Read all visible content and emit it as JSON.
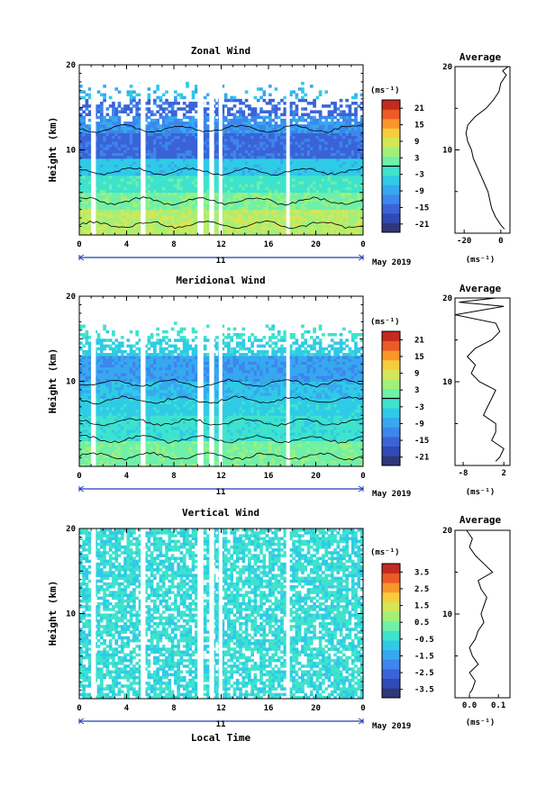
{
  "chart_data": [
    {
      "type": "heatmap",
      "title": "Zonal Wind",
      "ylabel": "Height (km)",
      "y_ticks": [
        "10",
        "20"
      ],
      "ylim": [
        0,
        20
      ],
      "x_ticks": [
        "0",
        "4",
        "8",
        "12",
        "16",
        "20",
        "0"
      ],
      "xlim": [
        0,
        24
      ],
      "day_label": "11",
      "date_label": "May 2019",
      "colorbar": {
        "unit": "(ms⁻¹)",
        "ticks": [
          "21",
          "15",
          "9",
          "3",
          "-3",
          "-9",
          "-15",
          "-21"
        ],
        "range": [
          -24,
          24
        ]
      },
      "profile": {
        "title": "Average",
        "xlabel": "(ms⁻¹)",
        "x_ticks": [
          "-20",
          "0"
        ],
        "xlim": [
          -25,
          5
        ],
        "y_ticks": [
          "10",
          "20"
        ],
        "height_km": [
          0.5,
          1,
          2,
          3,
          4,
          5,
          6,
          7,
          8,
          9,
          10,
          11,
          12,
          13,
          14,
          15,
          16,
          17,
          18,
          19,
          19.5,
          20
        ],
        "values": [
          2,
          0,
          -3,
          -5,
          -6,
          -7,
          -9,
          -11,
          -13,
          -15,
          -16,
          -18,
          -19,
          -18,
          -14,
          -8,
          -4,
          -1,
          0,
          3,
          1,
          4
        ]
      },
      "data_gaps_hours": [
        [
          1.0,
          1.4
        ],
        [
          5.2,
          5.6
        ],
        [
          10.0,
          10.5
        ],
        [
          11.0,
          11.4
        ],
        [
          11.8,
          12.1
        ],
        [
          17.5,
          17.8
        ]
      ],
      "coverage_top_km": 18
    },
    {
      "type": "heatmap",
      "title": "Meridional Wind",
      "ylabel": "Height (km)",
      "y_ticks": [
        "10",
        "20"
      ],
      "ylim": [
        0,
        20
      ],
      "x_ticks": [
        "0",
        "4",
        "8",
        "12",
        "16",
        "20",
        "0"
      ],
      "xlim": [
        0,
        24
      ],
      "day_label": "11",
      "date_label": "May 2019",
      "colorbar": {
        "unit": "(ms⁻¹)",
        "ticks": [
          "21",
          "15",
          "9",
          "3",
          "-3",
          "-9",
          "-15",
          "-21"
        ],
        "range": [
          -24,
          24
        ]
      },
      "profile": {
        "title": "Average",
        "xlabel": "(ms⁻¹)",
        "x_ticks": [
          "-8",
          "2"
        ],
        "xlim": [
          -10,
          3.5
        ],
        "y_ticks": [
          "10",
          "20"
        ],
        "height_km": [
          0.5,
          1,
          2,
          3,
          4,
          5,
          6,
          7,
          8,
          9,
          10,
          11,
          12,
          13,
          14,
          15,
          16,
          17,
          18,
          19,
          19.5,
          20
        ],
        "values": [
          0,
          1,
          2,
          -1,
          0,
          0,
          -3,
          -2,
          -1,
          0,
          -4,
          -6,
          -5,
          -7,
          -5,
          -1,
          1,
          0,
          -10,
          2,
          -9,
          0
        ]
      },
      "data_gaps_hours": [
        [
          1.0,
          1.4
        ],
        [
          5.2,
          5.6
        ],
        [
          10.0,
          10.5
        ],
        [
          11.0,
          11.4
        ],
        [
          11.8,
          12.1
        ],
        [
          17.5,
          17.8
        ]
      ],
      "coverage_top_km": 17
    },
    {
      "type": "heatmap",
      "title": "Vertical Wind",
      "ylabel": "Height (km)",
      "xlabel": "Local Time",
      "y_ticks": [
        "10",
        "20"
      ],
      "ylim": [
        0,
        20
      ],
      "x_ticks": [
        "0",
        "4",
        "8",
        "12",
        "16",
        "20",
        "0"
      ],
      "xlim": [
        0,
        24
      ],
      "day_label": "11",
      "date_label": "May 2019",
      "colorbar": {
        "unit": "(ms⁻¹)",
        "ticks": [
          "3.5",
          "2.5",
          "1.5",
          "0.5",
          "-0.5",
          "-1.5",
          "-2.5",
          "-3.5"
        ],
        "range": [
          -4,
          4
        ]
      },
      "profile": {
        "title": "Average",
        "xlabel": "(ms⁻¹)",
        "x_ticks": [
          "0.0",
          "0.1"
        ],
        "xlim": [
          -0.05,
          0.14
        ],
        "y_ticks": [
          "10",
          "20"
        ],
        "height_km": [
          0.5,
          1,
          2,
          3,
          4,
          5,
          6,
          7,
          8,
          9,
          10,
          11,
          12,
          13,
          14,
          15,
          16,
          17,
          18,
          19,
          19.5,
          20
        ],
        "values": [
          0.0,
          0.01,
          0.02,
          0.0,
          0.03,
          0.01,
          0.0,
          0.02,
          0.03,
          0.05,
          0.04,
          0.05,
          0.06,
          0.04,
          0.03,
          0.08,
          0.05,
          0.02,
          0.0,
          0.01,
          0.0,
          -0.01
        ]
      },
      "data_gaps_hours": [
        [
          1.0,
          1.4
        ],
        [
          5.2,
          5.6
        ],
        [
          10.0,
          10.5
        ],
        [
          11.0,
          11.4
        ],
        [
          11.8,
          12.1
        ],
        [
          17.5,
          17.8
        ]
      ],
      "coverage_top_km": 20
    }
  ],
  "colors": {
    "scale": [
      "#303778",
      "#2f4ab2",
      "#3b63d8",
      "#3d86ec",
      "#37a8f0",
      "#2fcbe6",
      "#3fe3cc",
      "#6ff0a8",
      "#a2f07a",
      "#d3e758",
      "#f6cd3c",
      "#f9962d",
      "#ec5a25",
      "#c42a1f"
    ]
  }
}
